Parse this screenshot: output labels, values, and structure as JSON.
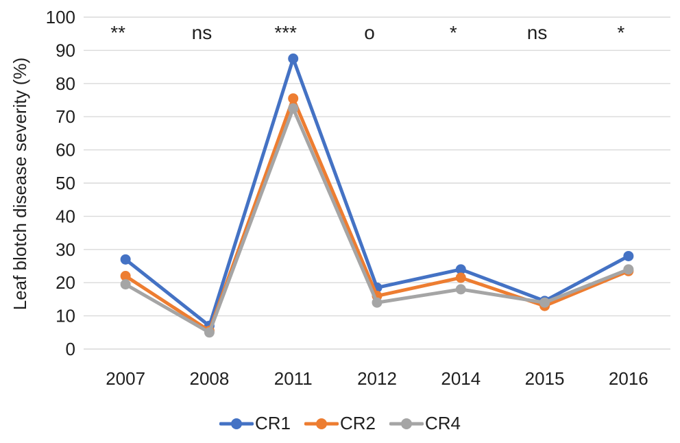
{
  "chart_data": {
    "type": "line",
    "title": "",
    "xlabel": "",
    "ylabel": "Leaf blotch disease severity (%)",
    "ylim": [
      0,
      100
    ],
    "yticks": [
      0,
      10,
      20,
      30,
      40,
      50,
      60,
      70,
      80,
      90,
      100
    ],
    "grid": true,
    "legend_position": "bottom",
    "categories": [
      "2007",
      "2008",
      "2011",
      "2012",
      "2014",
      "2015",
      "2016"
    ],
    "significance_labels": [
      "**",
      "ns",
      "***",
      "o",
      "*",
      "ns",
      "*"
    ],
    "series": [
      {
        "name": "CR1",
        "color": "#4472C4",
        "values": [
          27,
          7,
          87.5,
          18.5,
          24,
          14.5,
          28
        ]
      },
      {
        "name": "CR2",
        "color": "#ED7D31",
        "values": [
          22,
          5.5,
          75.5,
          16,
          21.5,
          13,
          23.5
        ]
      },
      {
        "name": "CR4",
        "color": "#A5A5A5",
        "values": [
          19.5,
          5,
          72.5,
          14,
          18,
          14,
          24
        ]
      }
    ],
    "colors": {
      "gridline": "#D9D9D9",
      "text": "#1f1f1f",
      "background": "#FFFFFF"
    }
  }
}
